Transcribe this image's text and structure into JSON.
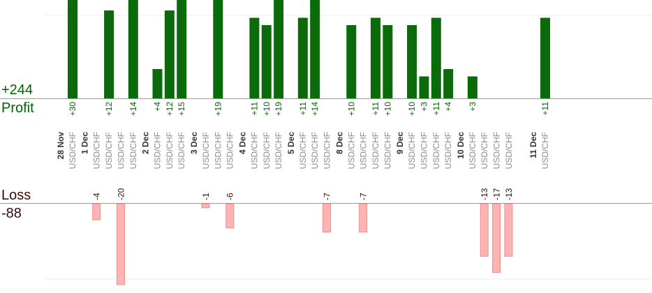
{
  "summary": {
    "profit_total": "+244",
    "profit_label": "Profit",
    "loss_label": "Loss",
    "loss_total": "-88"
  },
  "colors": {
    "profit_bar": "#0b6b0b",
    "profit_text": "#006400",
    "loss_bar": "#ffb3b3",
    "loss_text": "#3a0a0a",
    "pair_text": "#8c8c8c",
    "date_text": "#333333",
    "axis": "#999999",
    "grid": "#ececec"
  },
  "chart_data": {
    "type": "bar",
    "title": "",
    "profit_axis_max": 12,
    "loss_axis_max": 12,
    "columns": [
      {
        "date": "28 Nov",
        "pair": "USD/CHF",
        "profit": 30
      },
      {
        "date": "",
        "pair": ""
      },
      {
        "date": "1 Dec",
        "pair": "USD/CHF",
        "loss": -4
      },
      {
        "date": "",
        "pair": "USD/CHF",
        "profit": 12
      },
      {
        "date": "",
        "pair": "USD/CHF",
        "loss": -20
      },
      {
        "date": "",
        "pair": "USD/CHF",
        "profit": 14
      },
      {
        "date": "",
        "pair": ""
      },
      {
        "date": "2 Dec",
        "pair": "USD/CHF",
        "profit": 4
      },
      {
        "date": "",
        "pair": "USD/CHF",
        "profit": 12
      },
      {
        "date": "",
        "pair": "USD/CHF",
        "profit": 15
      },
      {
        "date": "",
        "pair": ""
      },
      {
        "date": "3 Dec",
        "pair": "USD/CHF",
        "loss": -1
      },
      {
        "date": "",
        "pair": "USD/CHF",
        "profit": 19
      },
      {
        "date": "",
        "pair": "USD/CHF",
        "loss": -6
      },
      {
        "date": "",
        "pair": ""
      },
      {
        "date": "4 Dec",
        "pair": "USD/CHF",
        "profit": 11
      },
      {
        "date": "",
        "pair": "USD/CHF",
        "profit": 10
      },
      {
        "date": "",
        "pair": "USD/CHF",
        "profit": 19
      },
      {
        "date": "",
        "pair": ""
      },
      {
        "date": "5 Dec",
        "pair": "USD/CHF",
        "profit": 11
      },
      {
        "date": "",
        "pair": "USD/CHF",
        "profit": 14
      },
      {
        "date": "",
        "pair": "USD/CHF",
        "loss": -7
      },
      {
        "date": "",
        "pair": ""
      },
      {
        "date": "8 Dec",
        "pair": "USD/CHF",
        "profit": 10
      },
      {
        "date": "",
        "pair": "USD/CHF",
        "loss": -7
      },
      {
        "date": "",
        "pair": "USD/CHF",
        "profit": 11
      },
      {
        "date": "",
        "pair": "USD/CHF",
        "profit": 10
      },
      {
        "date": "",
        "pair": ""
      },
      {
        "date": "9 Dec",
        "pair": "USD/CHF",
        "profit": 10
      },
      {
        "date": "",
        "pair": "USD/CHF",
        "profit": 3
      },
      {
        "date": "",
        "pair": "USD/CHF",
        "profit": 11
      },
      {
        "date": "",
        "pair": "USD/CHF",
        "profit": 4
      },
      {
        "date": "",
        "pair": ""
      },
      {
        "date": "10 Dec",
        "pair": "USD/CHF",
        "profit": 3
      },
      {
        "date": "",
        "pair": "USD/CHF",
        "loss": -13
      },
      {
        "date": "",
        "pair": "USD/CHF",
        "loss": -17
      },
      {
        "date": "",
        "pair": "USD/CHF",
        "loss": -13
      },
      {
        "date": "",
        "pair": ""
      },
      {
        "date": "",
        "pair": ""
      },
      {
        "date": "11 Dec",
        "pair": "USD/CHF",
        "profit": 11
      }
    ]
  }
}
